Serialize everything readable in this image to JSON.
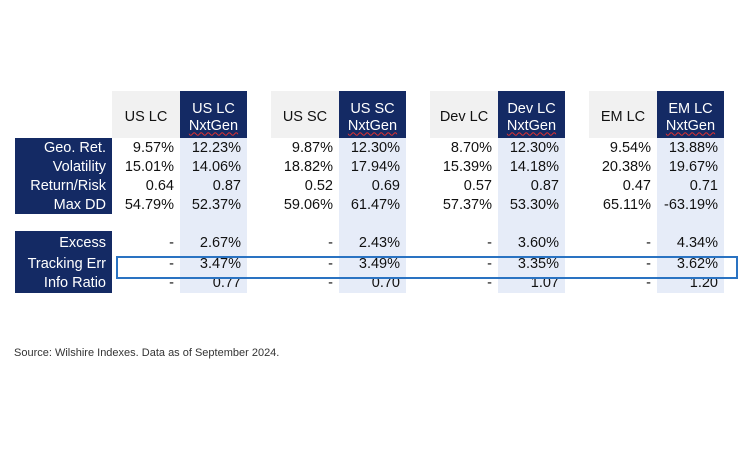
{
  "columns": [
    {
      "type": "plain",
      "line1": "US LC",
      "line2": ""
    },
    {
      "type": "dark",
      "line1": "US LC",
      "line2": "NxtGen"
    },
    {
      "type": "plain",
      "line1": "US SC",
      "line2": ""
    },
    {
      "type": "dark",
      "line1": "US SC",
      "line2": "NxtGen"
    },
    {
      "type": "plain",
      "line1": "Dev LC",
      "line2": ""
    },
    {
      "type": "dark",
      "line1": "Dev LC",
      "line2": "NxtGen"
    },
    {
      "type": "plain",
      "line1": "EM LC",
      "line2": ""
    },
    {
      "type": "dark",
      "line1": "EM LC",
      "line2": "NxtGen"
    }
  ],
  "rows": [
    {
      "label": "Geo. Ret.",
      "values": [
        "9.57%",
        "12.23%",
        "9.87%",
        "12.30%",
        "8.70%",
        "12.30%",
        "9.54%",
        "13.88%"
      ]
    },
    {
      "label": "Volatility",
      "values": [
        "15.01%",
        "14.06%",
        "18.82%",
        "17.94%",
        "15.39%",
        "14.18%",
        "20.38%",
        "19.67%"
      ]
    },
    {
      "label": "Return/Risk",
      "values": [
        "0.64",
        "0.87",
        "0.52",
        "0.69",
        "0.57",
        "0.87",
        "0.47",
        "0.71"
      ]
    },
    {
      "label": "Max DD",
      "values": [
        "54.79%",
        "52.37%",
        "59.06%",
        "61.47%",
        "57.37%",
        "53.30%",
        "65.11%",
        "-63.19%"
      ]
    },
    {
      "label": "",
      "values": [
        "",
        "",
        "",
        "",
        "",
        "",
        "",
        ""
      ]
    },
    {
      "label": "Excess",
      "values": [
        "-",
        "2.67%",
        "-",
        "2.43%",
        "-",
        "3.60%",
        "-",
        "4.34%"
      ]
    },
    {
      "label": "Tracking Err",
      "values": [
        "-",
        "3.47%",
        "-",
        "3.49%",
        "-",
        "3.35%",
        "-",
        "3.62%"
      ]
    },
    {
      "label": "Info Ratio",
      "values": [
        "-",
        "0.77",
        "-",
        "0.70",
        "-",
        "1.07",
        "-",
        "1.20"
      ]
    }
  ],
  "source": "Source:  Wilshire Indexes. Data as of September 2024.",
  "colors": {
    "navy": "#142a64",
    "light_blue": "#e6ecf8",
    "highlight_border": "#2a73c2"
  }
}
